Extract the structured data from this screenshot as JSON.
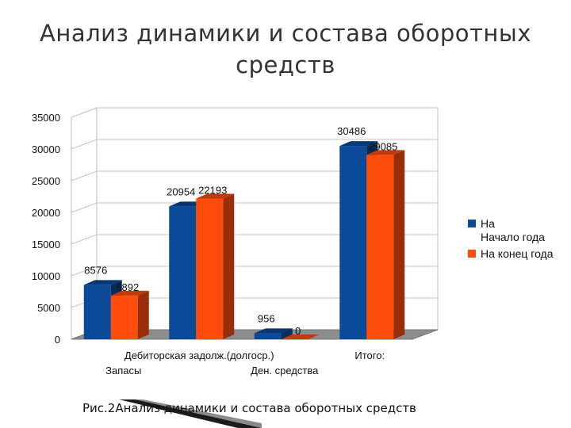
{
  "page": {
    "title_line1": "Анализ динамики и состава оборотных",
    "title_line2": "средств",
    "caption": "Рис.2Анализ динамики и состава оборотных средств"
  },
  "chart_data": {
    "type": "bar",
    "categories": [
      "Запасы",
      "Дебиторская задолж.(долгоср.)",
      "Ден. средства",
      "Итого:"
    ],
    "category_labels": [
      {
        "text": "Дебиторская задолж.(долгоср.)",
        "row": 1
      },
      {
        "text": "Итого:",
        "row": 1
      },
      {
        "text": "Запасы",
        "row": 2
      },
      {
        "text": "Ден. средства",
        "row": 2
      }
    ],
    "series": [
      {
        "name": "На Начало года",
        "values": [
          8576,
          20954,
          956,
          30486
        ],
        "color": "#0b4a99"
      },
      {
        "name": "На конец года",
        "values": [
          6892,
          22193,
          0,
          29085
        ],
        "color": "#ff4d10"
      }
    ],
    "ylim": [
      0,
      35000
    ],
    "yticks": [
      0,
      5000,
      10000,
      15000,
      20000,
      25000,
      30000,
      35000
    ],
    "grid": true,
    "legend_position": "right",
    "three_d": true
  },
  "legend": {
    "items": [
      {
        "label_line1": "На",
        "label_line2": "Начало года",
        "color": "#0b4a99"
      },
      {
        "label_line1": "На конец года",
        "label_line2": "",
        "color": "#ff4d10"
      }
    ]
  }
}
